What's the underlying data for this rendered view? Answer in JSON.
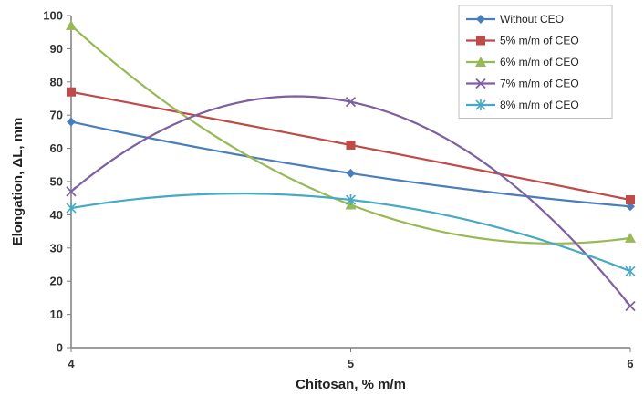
{
  "chart_data": {
    "type": "line",
    "x": [
      4,
      5,
      6
    ],
    "xlabel": "Chitosan, % m/m",
    "ylabel": "Elongation, ΔL, mm",
    "xlim": [
      4,
      6
    ],
    "ylim": [
      0,
      100
    ],
    "x_ticks": [
      "4",
      "5",
      "6"
    ],
    "y_ticks": [
      "0",
      "10",
      "20",
      "30",
      "40",
      "50",
      "60",
      "70",
      "80",
      "90",
      "100"
    ],
    "grid": false,
    "smooth": true,
    "legend_position": "top-right",
    "series": [
      {
        "name": "Without CEO",
        "values": [
          68,
          52.5,
          42.5
        ],
        "color": "#4a7ebb",
        "marker": "diamond"
      },
      {
        "name": "5% m/m of CEO",
        "values": [
          77,
          61,
          44.5
        ],
        "color": "#be4b48",
        "marker": "square"
      },
      {
        "name": "6% m/m of CEO",
        "values": [
          97,
          43,
          33
        ],
        "color": "#98b954",
        "marker": "triangle"
      },
      {
        "name": "7% m/m of CEO",
        "values": [
          47,
          74,
          12.5
        ],
        "color": "#7d60a0",
        "marker": "x"
      },
      {
        "name": "8% m/m of CEO",
        "values": [
          42,
          44.5,
          23
        ],
        "color": "#46aac4",
        "marker": "star"
      }
    ]
  }
}
